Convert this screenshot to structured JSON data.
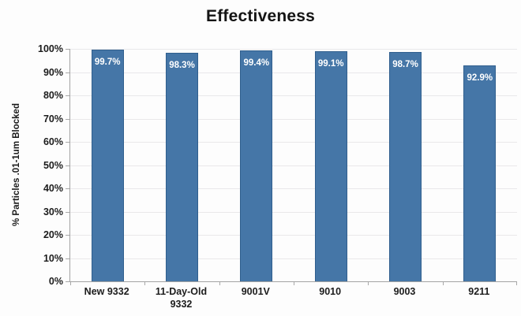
{
  "chart_data": {
    "type": "bar",
    "title": "Effectiveness",
    "ylabel": "% Particles .01-1um Blocked",
    "xlabel": "",
    "categories": [
      "New 9332",
      "11-Day-Old 9332",
      "9001V",
      "9010",
      "9003",
      "9211"
    ],
    "values": [
      99.7,
      98.3,
      99.4,
      99.1,
      98.7,
      92.9
    ],
    "value_labels": [
      "99.7%",
      "98.3%",
      "99.4%",
      "99.1%",
      "98.7%",
      "92.9%"
    ],
    "ylim": [
      0,
      100
    ],
    "y_tick_values": [
      0,
      10,
      20,
      30,
      40,
      50,
      60,
      70,
      80,
      90,
      100
    ],
    "y_tick_labels": [
      "0%",
      "10%",
      "20%",
      "30%",
      "40%",
      "50%",
      "60%",
      "70%",
      "80%",
      "90%",
      "100%"
    ],
    "grid": "horizontal",
    "legend": "none",
    "colors": {
      "bar_fill": "#4576a7",
      "bar_border": "#305f8e",
      "value_label": "#ffffff",
      "gridline": "#e9e8ea",
      "axis": "#a3a3a3",
      "text": "#1c1c1c"
    }
  }
}
